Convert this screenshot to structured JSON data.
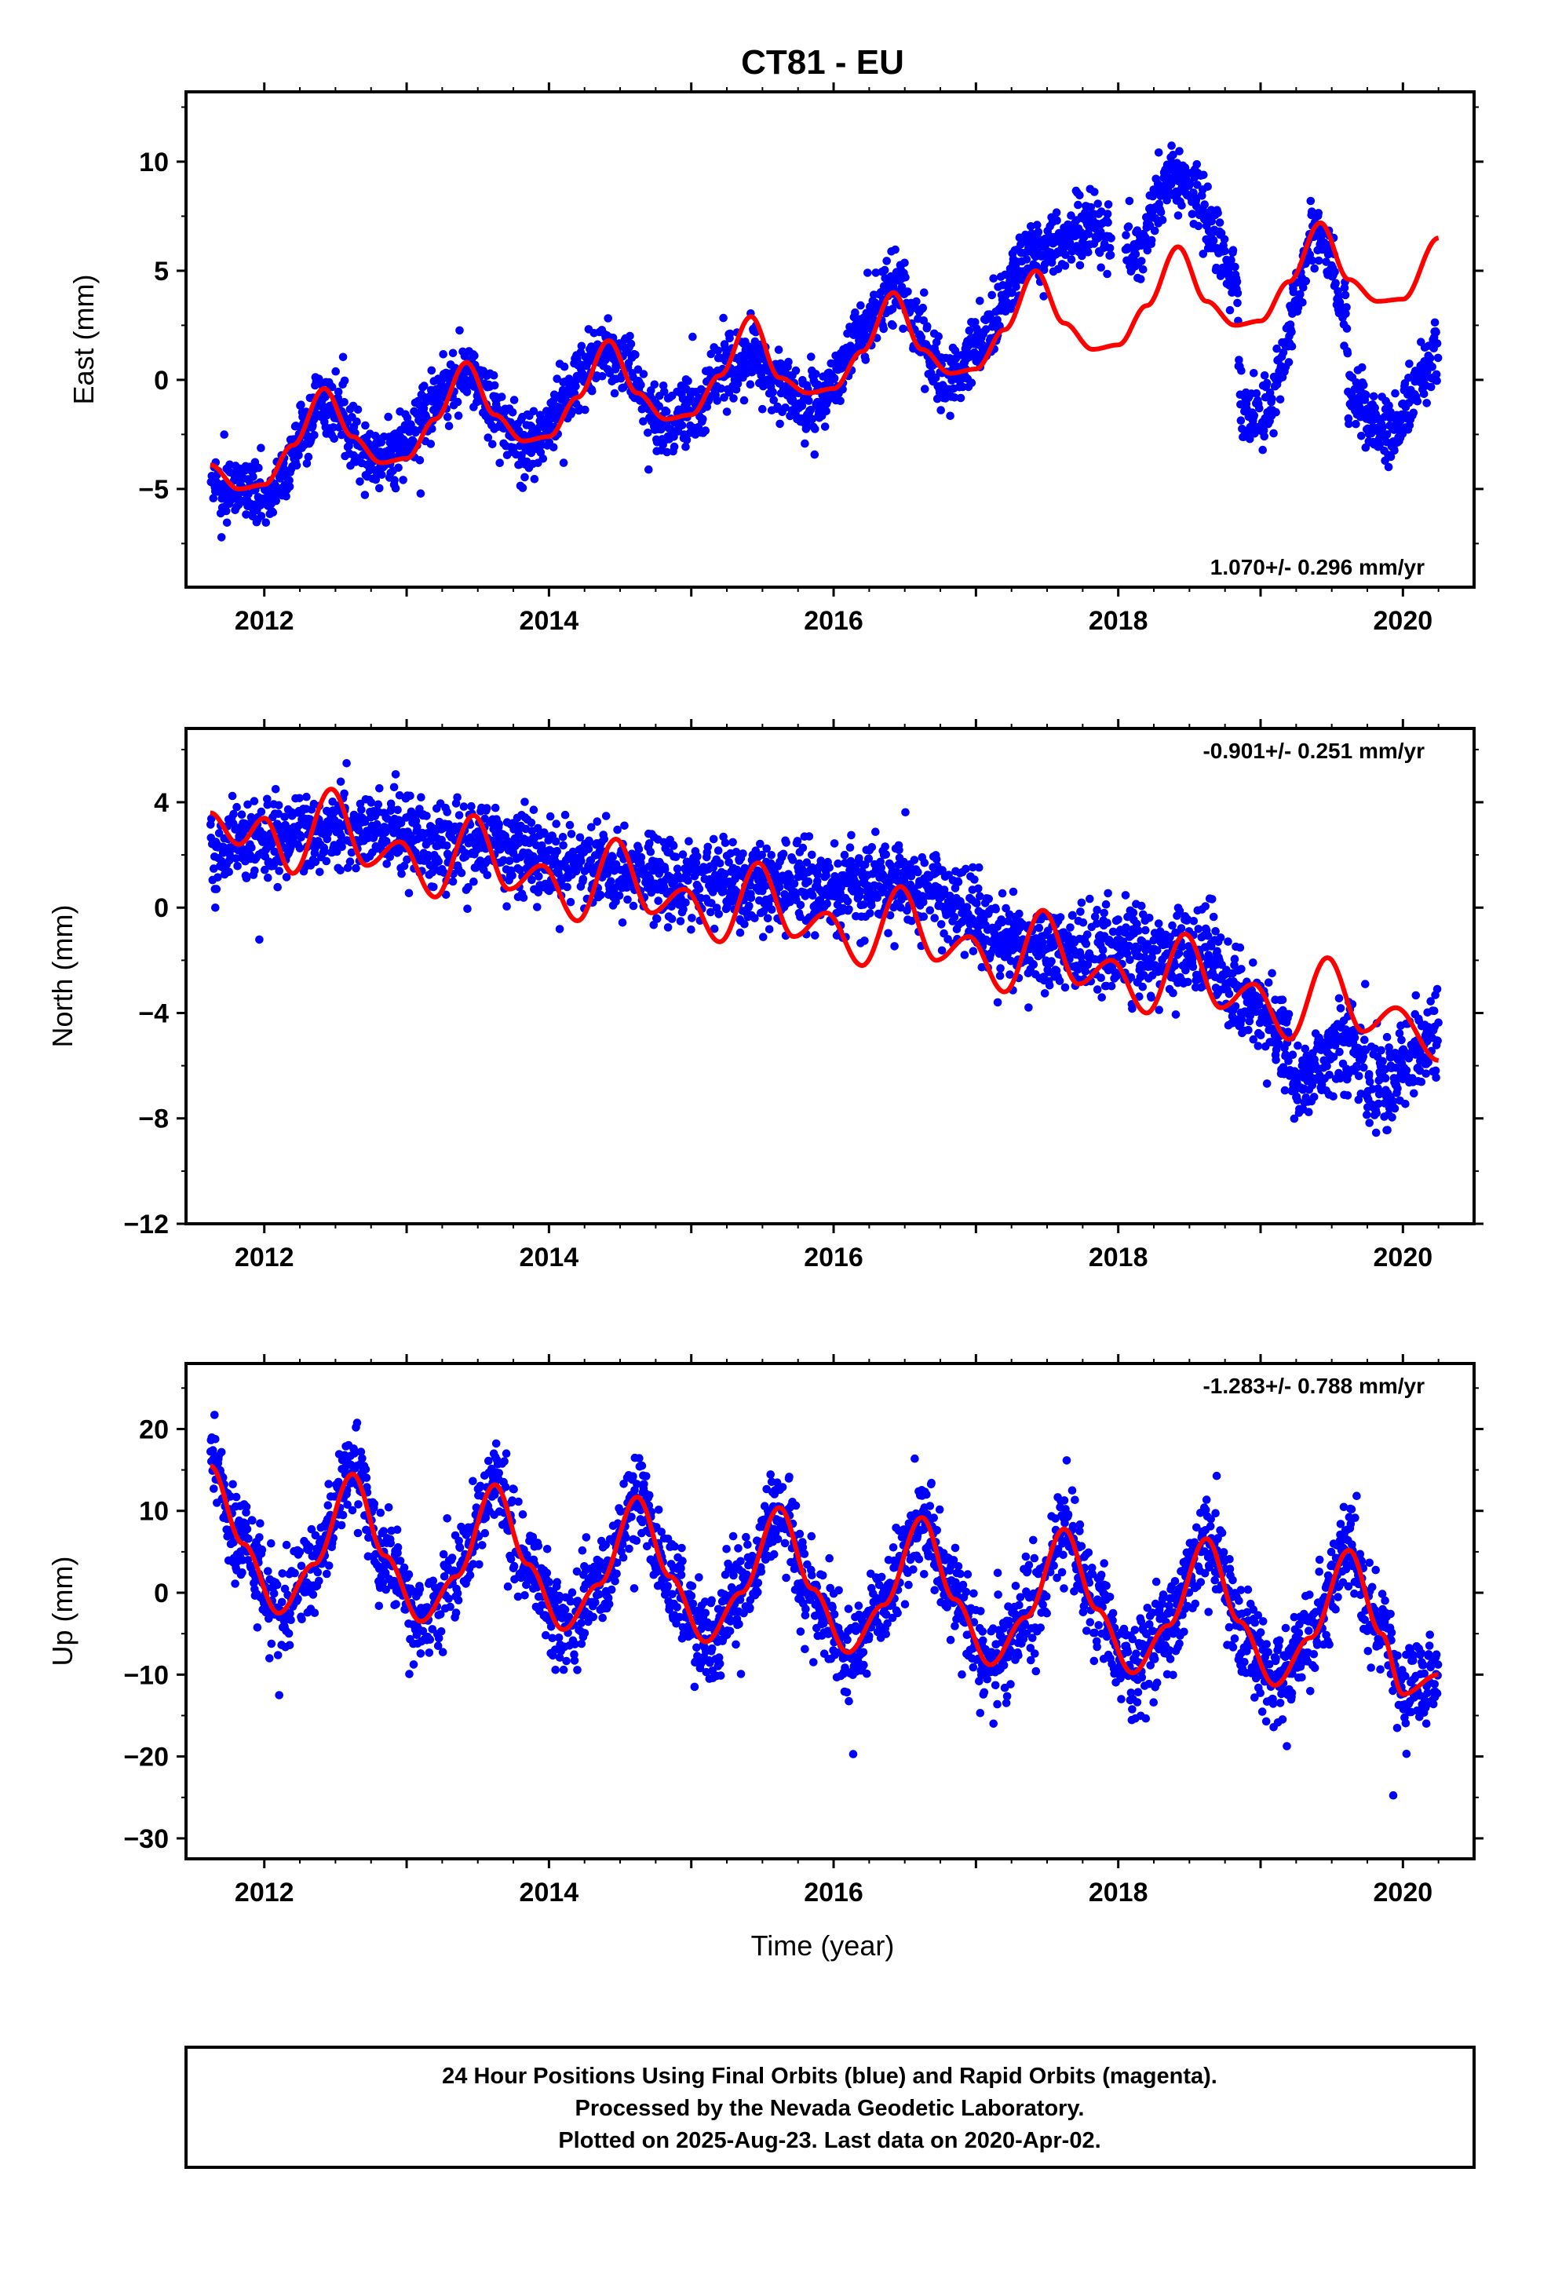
{
  "colors": {
    "observations": "#0000ff",
    "model": "#ff0000",
    "frame": "#000000"
  },
  "caption": {
    "line1": "24 Hour Positions Using Final Orbits (blue) and Rapid Orbits (magenta).",
    "line2": "Processed by the Nevada Geodetic Laboratory.",
    "line3": "Plotted on 2025-Aug-23. Last data on 2020-Apr-02."
  },
  "chart_data": [
    {
      "type": "scatter",
      "title": "CT81 - EU",
      "ylabel": "East (mm)",
      "xlabel": "",
      "xlim": [
        2011.45,
        2020.5
      ],
      "ylim": [
        -9.5,
        13.2
      ],
      "xticks": [
        2012,
        2014,
        2016,
        2018,
        2020
      ],
      "yticks": [
        -5,
        0,
        5,
        10
      ],
      "rate_text": "1.070+/- 0.296 mm/yr",
      "rate_position": "bottom-right",
      "data_start": 2011.62,
      "data_end": 2020.25,
      "gaps": [
        [
          2017.95,
          2018.05
        ]
      ],
      "scatter_std": 1.2,
      "series": [
        {
          "kind": "model-curve",
          "x": [
            2011.62,
            2011.82,
            2012.0,
            2012.2,
            2012.42,
            2012.62,
            2012.82,
            2013.0,
            2013.2,
            2013.42,
            2013.62,
            2013.82,
            2014.0,
            2014.2,
            2014.42,
            2014.62,
            2014.82,
            2015.0,
            2015.2,
            2015.42,
            2015.62,
            2015.82,
            2016.0,
            2016.2,
            2016.42,
            2016.62,
            2016.82,
            2017.0,
            2017.2,
            2017.42,
            2017.62,
            2017.82,
            2018.0,
            2018.2,
            2018.42,
            2018.62,
            2018.82,
            2019.0,
            2019.2,
            2019.42,
            2019.62,
            2019.82,
            2020.0,
            2020.25
          ],
          "y": [
            -3.9,
            -5.0,
            -4.8,
            -3.0,
            -0.4,
            -2.6,
            -3.8,
            -3.6,
            -1.8,
            0.8,
            -1.6,
            -2.8,
            -2.6,
            -0.8,
            1.8,
            -0.6,
            -1.8,
            -1.6,
            0.2,
            2.9,
            0.1,
            -0.6,
            -0.4,
            1.3,
            4.0,
            1.4,
            0.3,
            0.5,
            2.3,
            5.0,
            2.6,
            1.4,
            1.6,
            3.4,
            6.1,
            3.6,
            2.5,
            2.7,
            4.5,
            7.2,
            4.6,
            3.6,
            3.7,
            6.5
          ]
        },
        {
          "kind": "observation-trend",
          "x": [
            2011.62,
            2012.0,
            2012.42,
            2012.82,
            2013.42,
            2013.82,
            2014.42,
            2014.82,
            2015.42,
            2015.82,
            2016.42,
            2016.82,
            2017.0,
            2017.42,
            2017.8,
            2018.1,
            2018.42,
            2018.82,
            2018.87,
            2019.0,
            2019.42,
            2019.6,
            2019.62,
            2019.9,
            2020.25
          ],
          "y": [
            -5.0,
            -5.2,
            -1.2,
            -3.6,
            0.2,
            -2.9,
            1.4,
            -2.1,
            1.0,
            -1.2,
            4.0,
            0.2,
            1.5,
            6.0,
            7.2,
            6.0,
            9.3,
            5.2,
            -1.3,
            -1.8,
            6.8,
            3.0,
            -1.0,
            -2.5,
            1.4
          ]
        }
      ]
    },
    {
      "type": "scatter",
      "title": "",
      "ylabel": "North (mm)",
      "xlabel": "",
      "xlim": [
        2011.45,
        2020.5
      ],
      "ylim": [
        -12.0,
        6.8
      ],
      "xticks": [
        2012,
        2014,
        2016,
        2018,
        2020
      ],
      "yticks": [
        -12,
        -8,
        -4,
        0,
        4
      ],
      "rate_text": "-0.901+/- 0.251 mm/yr",
      "rate_position": "top-right",
      "data_start": 2011.62,
      "data_end": 2020.25,
      "gaps": [],
      "scatter_std": 1.25,
      "series": [
        {
          "kind": "model-curve",
          "x": [
            2011.62,
            2011.82,
            2012.0,
            2012.2,
            2012.47,
            2012.72,
            2012.95,
            2013.2,
            2013.47,
            2013.72,
            2013.95,
            2014.2,
            2014.47,
            2014.72,
            2014.95,
            2015.2,
            2015.47,
            2015.72,
            2015.95,
            2016.2,
            2016.47,
            2016.72,
            2016.95,
            2017.2,
            2017.47,
            2017.72,
            2017.95,
            2018.2,
            2018.47,
            2018.72,
            2018.95,
            2019.2,
            2019.47,
            2019.72,
            2019.95,
            2020.25
          ],
          "y": [
            3.6,
            2.4,
            3.4,
            1.3,
            4.5,
            1.6,
            2.5,
            0.4,
            3.5,
            0.7,
            1.6,
            -0.5,
            2.6,
            -0.2,
            0.7,
            -1.3,
            1.7,
            -1.1,
            -0.2,
            -2.2,
            0.8,
            -2.0,
            -1.1,
            -3.2,
            -0.1,
            -2.9,
            -2.0,
            -4.0,
            -1.0,
            -3.8,
            -2.9,
            -5.0,
            -1.9,
            -4.7,
            -3.8,
            -5.8
          ]
        },
        {
          "kind": "observation-trend",
          "x": [
            2011.62,
            2012.5,
            2013.5,
            2014.5,
            2015.5,
            2016.5,
            2017.5,
            2018.5,
            2019.0,
            2019.3,
            2019.6,
            2019.8,
            2020.25
          ],
          "y": [
            2.2,
            3.0,
            2.3,
            1.4,
            0.8,
            0.8,
            -1.6,
            -1.6,
            -3.8,
            -6.5,
            -5.0,
            -6.8,
            -4.8
          ]
        }
      ]
    },
    {
      "type": "scatter",
      "title": "",
      "ylabel": "Up (mm)",
      "xlabel": "Time (year)",
      "xlim": [
        2011.45,
        2020.5
      ],
      "ylim": [
        -32.5,
        28.0
      ],
      "xticks": [
        2012,
        2014,
        2016,
        2018,
        2020
      ],
      "yticks": [
        -30,
        -20,
        -10,
        0,
        10,
        20
      ],
      "rate_text": "-1.283+/- 0.788 mm/yr",
      "rate_position": "top-right",
      "data_start": 2011.62,
      "data_end": 2020.25,
      "gaps": [],
      "scatter_std": 4.3,
      "series": [
        {
          "kind": "model-curve",
          "x": [
            2011.62,
            2011.85,
            2012.1,
            2012.35,
            2012.62,
            2012.85,
            2013.1,
            2013.35,
            2013.62,
            2013.85,
            2014.1,
            2014.35,
            2014.62,
            2014.85,
            2015.1,
            2015.35,
            2015.62,
            2015.85,
            2016.1,
            2016.35,
            2016.62,
            2016.85,
            2017.1,
            2017.35,
            2017.62,
            2017.85,
            2018.1,
            2018.35,
            2018.62,
            2018.85,
            2019.1,
            2019.35,
            2019.62,
            2019.85,
            2020.0,
            2020.25
          ],
          "y": [
            15.5,
            6.0,
            -2.5,
            3.5,
            14.5,
            4.5,
            -3.5,
            2.0,
            13.2,
            3.5,
            -4.5,
            1.0,
            11.7,
            2.0,
            -6.0,
            0.0,
            10.4,
            0.5,
            -7.3,
            -1.5,
            9.2,
            -0.8,
            -8.8,
            -3.0,
            7.8,
            -2.0,
            -9.8,
            -4.0,
            6.6,
            -3.5,
            -11.3,
            -5.5,
            5.2,
            -5.0,
            -12.4,
            -10.0
          ]
        },
        {
          "kind": "observation-trend",
          "x": [
            2011.62,
            2011.85,
            2012.1,
            2012.35,
            2012.62,
            2012.85,
            2013.1,
            2013.35,
            2013.62,
            2013.85,
            2014.1,
            2014.35,
            2014.62,
            2014.85,
            2015.1,
            2015.35,
            2015.62,
            2015.85,
            2016.1,
            2016.35,
            2016.62,
            2016.85,
            2017.1,
            2017.35,
            2017.62,
            2017.85,
            2018.1,
            2018.35,
            2018.62,
            2018.85,
            2019.1,
            2019.35,
            2019.62,
            2019.85,
            2020.0,
            2020.25
          ],
          "y": [
            15.5,
            6.0,
            -2.5,
            3.5,
            14.5,
            4.5,
            -3.5,
            2.0,
            13.2,
            3.5,
            -4.5,
            1.0,
            11.7,
            2.0,
            -6.0,
            0.0,
            10.4,
            0.5,
            -7.3,
            -1.5,
            9.2,
            -0.8,
            -8.8,
            -3.0,
            7.8,
            -2.0,
            -9.8,
            -4.0,
            6.6,
            -3.5,
            -11.3,
            -5.5,
            5.2,
            -5.0,
            -12.4,
            -10.0
          ]
        }
      ]
    }
  ]
}
